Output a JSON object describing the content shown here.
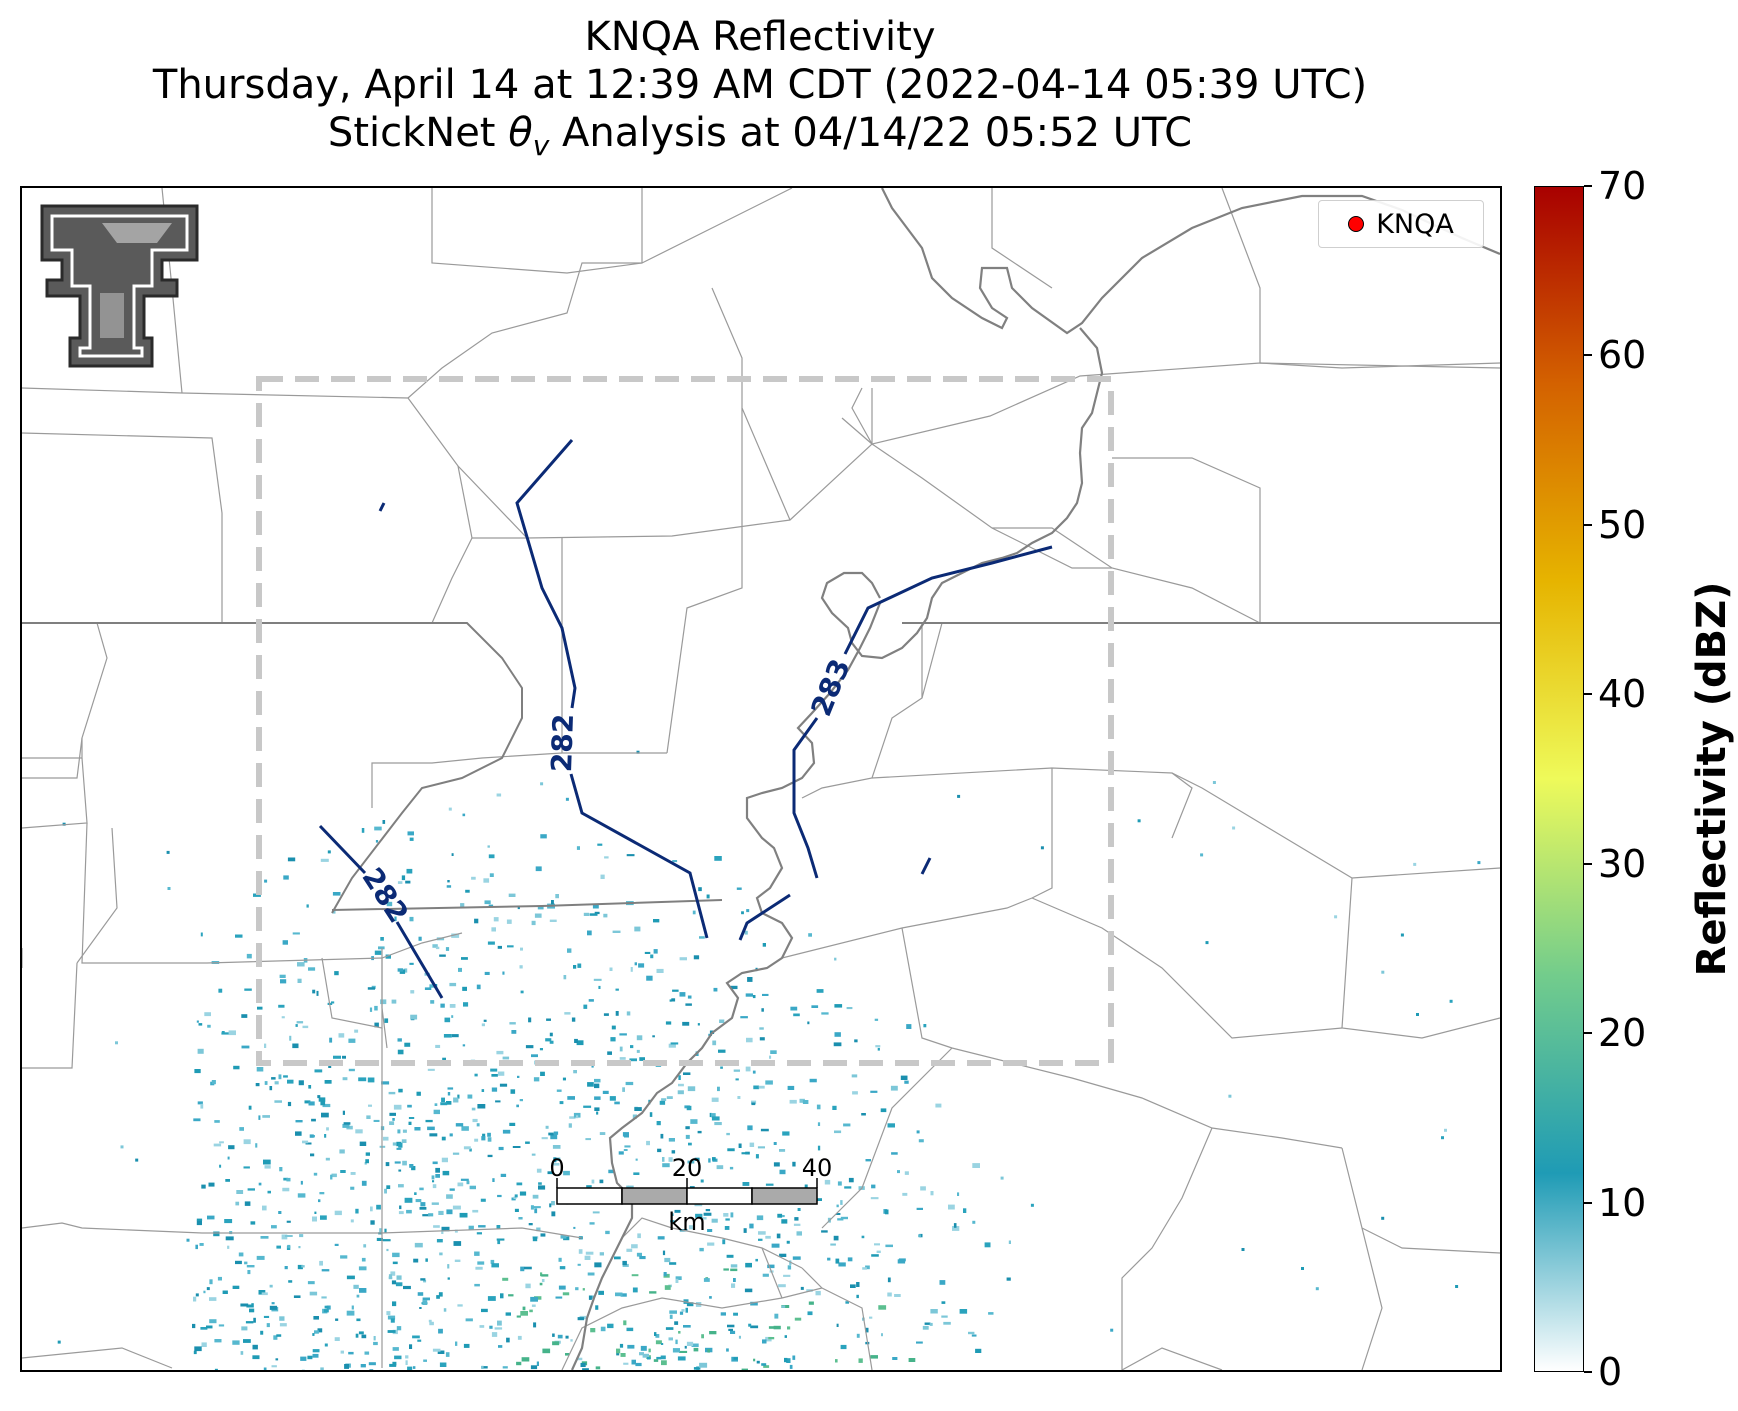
{
  "title": {
    "line1": "KNQA Reflectivity",
    "line2": "Thursday, April 14 at 12:39 AM CDT (2022-04-14 05:39 UTC)",
    "line3_prefix": "StickNet ",
    "line3_symbol": "θ",
    "line3_sub": "v",
    "line3_suffix": " Analysis at 04/14/22 05:52 UTC"
  },
  "legend": {
    "label": "KNQA",
    "marker_color": "#ff0000"
  },
  "colorbar": {
    "label": "Reflectivity (dBZ)",
    "min": 0,
    "max": 70,
    "ticks": [
      {
        "v": 0,
        "t": "0"
      },
      {
        "v": 10,
        "t": "10"
      },
      {
        "v": 20,
        "t": "20"
      },
      {
        "v": 30,
        "t": "30"
      },
      {
        "v": 40,
        "t": "40"
      },
      {
        "v": 50,
        "t": "50"
      },
      {
        "v": 60,
        "t": "60"
      },
      {
        "v": 70,
        "t": "70"
      }
    ],
    "colors": [
      "#ffffff",
      "#1f9bb5",
      "#72cc8c",
      "#eefa5a",
      "#e6b400",
      "#d46200",
      "#a80000"
    ]
  },
  "contours": {
    "color": "#0b2a75",
    "labels": [
      "282",
      "282",
      "283"
    ]
  },
  "scale_bar": {
    "ticks": [
      "0",
      "20",
      "40"
    ],
    "unit": "km"
  },
  "colors": {
    "state_border": "#7f7f7f",
    "county_border": "#9a9a9a",
    "river": "#808080",
    "domain_box": "#c8c8c8"
  },
  "logo": {
    "text": "T"
  }
}
